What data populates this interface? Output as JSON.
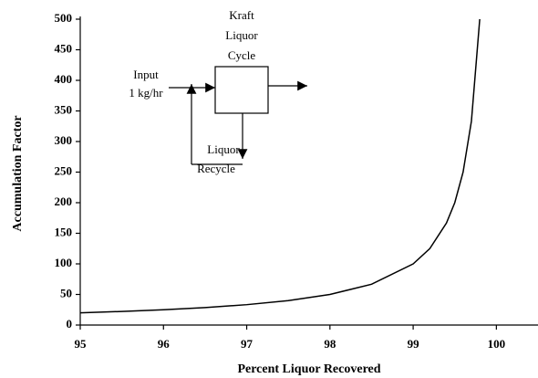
{
  "chart_data": {
    "type": "line",
    "x_label": "Percent Liquor Recovered",
    "y_label": "Accumulation Factor",
    "x": [
      95,
      95.5,
      96,
      96.5,
      97,
      97.5,
      98,
      98.5,
      99,
      99.2,
      99.4,
      99.5,
      99.6,
      99.7,
      99.8
    ],
    "series": [
      {
        "name": "Accumulation Factor",
        "color": "#000000",
        "values": [
          20,
          22.2,
          25,
          28.6,
          33.3,
          40,
          50,
          66.7,
          100,
          125,
          166.7,
          200,
          250,
          333.3,
          500
        ]
      }
    ],
    "xlim": [
      95,
      100.5
    ],
    "xticks": [
      95,
      96,
      97,
      98,
      99,
      100
    ],
    "ylim": [
      0,
      500
    ],
    "yticks": [
      0,
      50,
      100,
      150,
      200,
      250,
      300,
      350,
      400,
      450,
      500
    ],
    "annotations": [
      "Kraft",
      "Liquor",
      "Cycle",
      "Input",
      "1 kg/hr",
      "Liquor",
      "Recycle"
    ]
  }
}
